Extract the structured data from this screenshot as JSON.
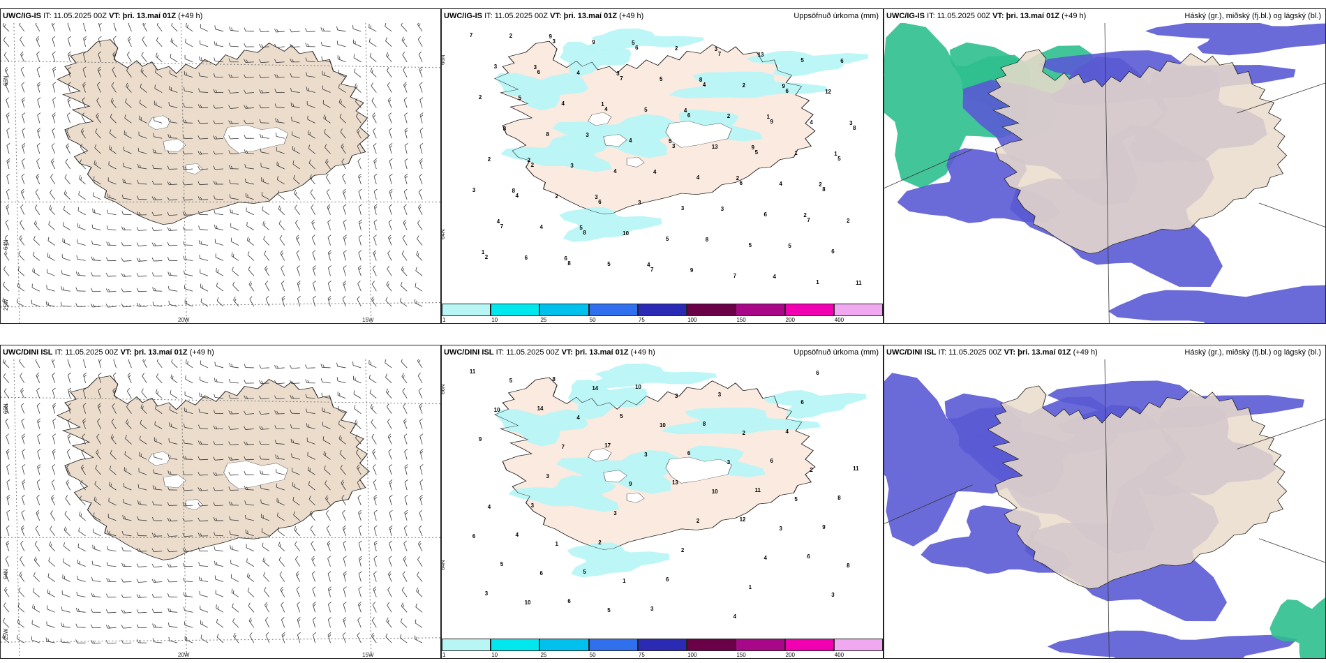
{
  "rows": [
    {
      "model": "UWC/IG-IS",
      "panels": [
        {
          "model_label": "UWC/IG-IS",
          "it_label": "IT:",
          "it": "11.05.2025 00Z",
          "vt_label": "VT:",
          "vt": "þri. 13.maí 01Z",
          "lead": "(+49 h)",
          "field": ""
        },
        {
          "model_label": "UWC/IG-IS",
          "it_label": "IT:",
          "it": "11.05.2025 00Z",
          "vt_label": "VT:",
          "vt": "þri. 13.maí 01Z",
          "lead": "(+49 h)",
          "field": "Uppsöfnuð úrkoma (mm)"
        },
        {
          "model_label": "UWC/IG-IS",
          "it_label": "IT:",
          "it": "11.05.2025 00Z",
          "vt_label": "VT:",
          "vt": "þri. 13.maí 01Z",
          "lead": "(+49 h)",
          "field": "Háský (gr.), miðský (fj.bl.) og lágský (bl.)"
        }
      ]
    },
    {
      "model": "UWC/DINI ISL",
      "panels": [
        {
          "model_label": "UWC/DINI ISL",
          "it_label": "IT:",
          "it": "11.05.2025 00Z",
          "vt_label": "VT:",
          "vt": "þri. 13.maí 01Z",
          "lead": "(+49 h)",
          "field": ""
        },
        {
          "model_label": "UWC/DINI ISL",
          "it_label": "IT:",
          "it": "11.05.2025 00Z",
          "vt_label": "VT:",
          "vt": "þri. 13.maí 01Z",
          "lead": "(+49 h)",
          "field": "Uppsöfnuð úrkoma (mm)"
        },
        {
          "model_label": "UWC/DINI ISL",
          "it_label": "IT:",
          "it": "11.05.2025 00Z",
          "vt_label": "VT:",
          "vt": "þri. 13.maí 01Z",
          "lead": "(+49 h)",
          "field": "Háský (gr.), miðský (fj.bl.) og lágský (bl.)"
        }
      ]
    }
  ],
  "axis_labels": {
    "lat_66": "66N",
    "lat_64": "64N",
    "lon_25": "25W",
    "lon_20": "20W",
    "lon_15": "15W"
  },
  "precip_scale": {
    "levels": [
      "1",
      "10",
      "25",
      "50",
      "75",
      "100",
      "150",
      "200",
      "400"
    ],
    "colors": [
      "#b8f6f6",
      "#00e8ee",
      "#00c0ee",
      "#3070ee",
      "#2a2ab4",
      "#6a0048",
      "#a80888",
      "#f000b0",
      "#f0a8f0"
    ]
  },
  "precip_labels_top": [
    "7",
    "6",
    "4",
    "3",
    "6",
    "7",
    "2",
    "3",
    "7",
    "6",
    "5",
    "8",
    "7",
    "8",
    "6",
    "4",
    "9",
    "5",
    "4",
    "8",
    "7",
    "7",
    "6",
    "8",
    "2",
    "6",
    "5",
    "7",
    "5",
    "2",
    "8",
    "4",
    "3",
    "5",
    "1",
    "3",
    "4",
    "4",
    "4",
    "6",
    "6",
    "2",
    "4",
    "5",
    "13",
    "4",
    "2",
    "6",
    "9",
    "5",
    "2",
    "1",
    "3",
    "4",
    "5",
    "2",
    "2",
    "4",
    "2",
    "2",
    "10",
    "9",
    "13",
    "12",
    "8",
    "3",
    "3",
    "8",
    "4",
    "6",
    "5",
    "3",
    "4",
    "3",
    "5",
    "11",
    "3",
    "1",
    "5",
    "2",
    "2",
    "1",
    "9",
    "3",
    "4",
    "9",
    "2",
    "4",
    "6",
    "5",
    "8",
    "1",
    "1",
    "8",
    "5",
    "4",
    "3",
    "9",
    "3",
    "2",
    "3"
  ],
  "precip_labels_bottom": [
    "11",
    "14",
    "17",
    "13",
    "12",
    "6",
    "3",
    "8",
    "5",
    "6",
    "11",
    "9",
    "5",
    "6",
    "10",
    "8",
    "6",
    "8",
    "4",
    "5",
    "3",
    "3",
    "4",
    "11",
    "3",
    "2",
    "6",
    "4",
    "6",
    "9",
    "3",
    "3",
    "2",
    "1",
    "6",
    "10",
    "7",
    "9",
    "2",
    "4",
    "3",
    "5",
    "4",
    "3",
    "10",
    "3",
    "8",
    "10",
    "14",
    "10",
    "3",
    "5",
    "6",
    "6",
    "5",
    "3",
    "2",
    "2",
    "4",
    "1",
    "1"
  ],
  "legend_colors": {
    "land": "#efe2d2",
    "land_precip": "#faeadf",
    "precip_light": "#b8f6f6",
    "cloud_low": "#5a5ad4",
    "cloud_mid": "#2fbf8f",
    "cloud_high": "#9a9a9a"
  }
}
